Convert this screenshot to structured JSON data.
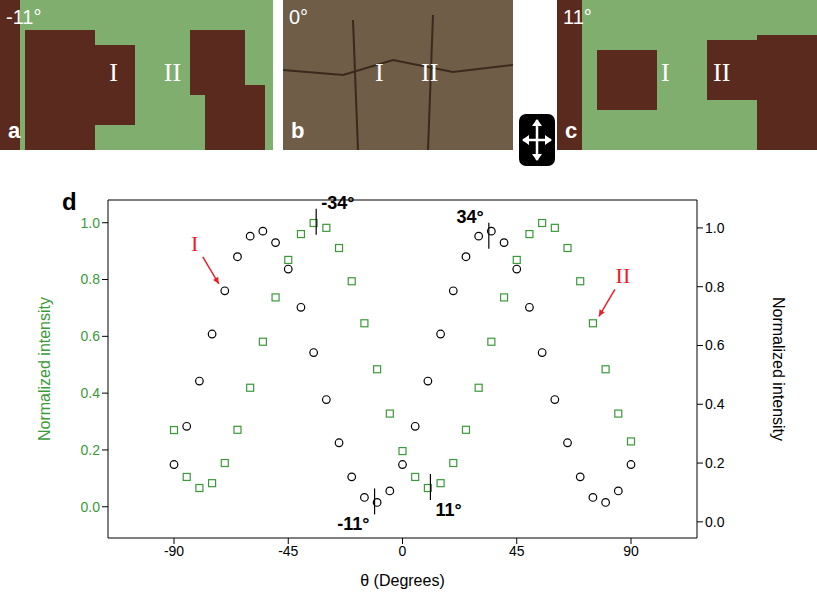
{
  "panels": [
    {
      "letter": "a",
      "angle": "-11°",
      "regions": [
        "I",
        "II"
      ]
    },
    {
      "letter": "b",
      "angle": "0°",
      "regions": [
        "I",
        "II"
      ]
    },
    {
      "letter": "c",
      "angle": "11°",
      "regions": [
        "I",
        "II"
      ]
    }
  ],
  "chart_data": {
    "type": "scatter",
    "panel_label": "d",
    "x_label": "θ (Degrees)",
    "y_label": "Normalized intensity",
    "y2_label": "Normalized intensity",
    "xlim": [
      -116,
      116
    ],
    "xticks": [
      -90,
      -45,
      0,
      45,
      90
    ],
    "ylim": [
      -0.11,
      1.08
    ],
    "yticks": [
      {
        "value": 0,
        "label": "0.0"
      },
      {
        "value": 0.2,
        "label": "0.2"
      },
      {
        "value": 0.4,
        "label": "0.4"
      },
      {
        "value": 0.6,
        "label": "0.6"
      },
      {
        "value": 0.8,
        "label": "0.8"
      },
      {
        "value": 1,
        "label": "1.0"
      }
    ],
    "y2lim": [
      -0.055,
      1.095
    ],
    "y2ticks": [
      {
        "value": 0,
        "label": "0.0"
      },
      {
        "value": 0.2,
        "label": "0.2"
      },
      {
        "value": 0.4,
        "label": "0.4"
      },
      {
        "value": 0.6,
        "label": "0.6"
      },
      {
        "value": 0.8,
        "label": "0.8"
      },
      {
        "value": 1,
        "label": "1.0"
      }
    ],
    "x": [
      -90,
      -85,
      -80,
      -75,
      -70,
      -65,
      -60,
      -55,
      -50,
      -45,
      -40,
      -35,
      -30,
      -25,
      -20,
      -15,
      -10,
      -5,
      0,
      5,
      10,
      15,
      20,
      25,
      30,
      35,
      40,
      45,
      50,
      55,
      60,
      65,
      70,
      75,
      80,
      85,
      90
    ],
    "series": [
      {
        "name": "I",
        "color": "#000000",
        "marker": "circle",
        "axis": "y2",
        "label_color": "#e8202a",
        "label_x": -70,
        "values": [
          0.195,
          0.325,
          0.479,
          0.639,
          0.786,
          0.902,
          0.972,
          0.989,
          0.95,
          0.86,
          0.73,
          0.576,
          0.416,
          0.269,
          0.153,
          0.083,
          0.066,
          0.105,
          0.195,
          0.325,
          0.479,
          0.639,
          0.786,
          0.902,
          0.972,
          0.989,
          0.95,
          0.86,
          0.73,
          0.576,
          0.416,
          0.269,
          0.153,
          0.083,
          0.066,
          0.105,
          0.195
        ]
      },
      {
        "name": "II",
        "color": "#3a9a3a",
        "marker": "square",
        "axis": "y",
        "label_color": "#e8202a",
        "label_x": 75,
        "values": [
          0.27,
          0.105,
          0.066,
          0.083,
          0.154,
          0.271,
          0.419,
          0.581,
          0.737,
          0.869,
          0.96,
          0.999,
          0.982,
          0.911,
          0.794,
          0.646,
          0.484,
          0.328,
          0.196,
          0.105,
          0.066,
          0.083,
          0.154,
          0.271,
          0.419,
          0.581,
          0.737,
          0.869,
          0.96,
          0.999,
          0.982,
          0.911,
          0.794,
          0.646,
          0.484,
          0.328,
          0.23
        ]
      }
    ],
    "annotations": [
      {
        "text": "-34°",
        "x": -34,
        "y": 1.0,
        "axis": "y"
      },
      {
        "text": "34°",
        "x": 34,
        "y": 0.97,
        "axis": "y2"
      },
      {
        "text": "-11°",
        "x": -11,
        "y": 0.066,
        "axis": "y2"
      },
      {
        "text": "11°",
        "x": 11,
        "y": 0.066,
        "axis": "y"
      }
    ]
  }
}
